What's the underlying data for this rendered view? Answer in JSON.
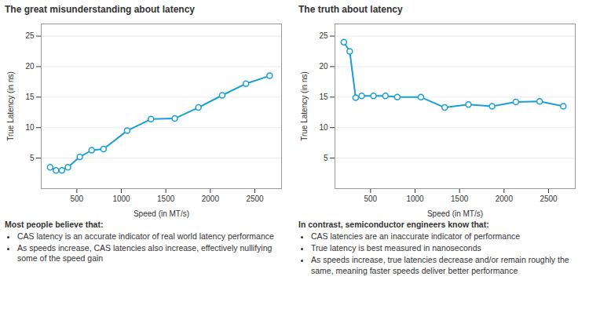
{
  "chart_data": [
    {
      "type": "line",
      "title": "The great misunderstanding about latency",
      "xlabel": "Speed (in MT/s)",
      "ylabel": "True Latency (in ns)",
      "x": [
        200,
        266,
        333,
        400,
        533,
        667,
        800,
        1066,
        1333,
        1600,
        1866,
        2133,
        2400,
        2666
      ],
      "values": [
        3.5,
        3.0,
        3.0,
        3.5,
        5.2,
        6.3,
        6.5,
        9.5,
        11.4,
        11.5,
        13.3,
        15.3,
        17.2,
        18.5
      ],
      "color": "#1A9FD4",
      "marker": "o",
      "xlim": [
        100,
        2800
      ],
      "xticks": [
        500,
        1000,
        1500,
        2000,
        2500
      ],
      "ylim": [
        0,
        27
      ],
      "yticks": [
        5,
        10,
        15,
        20,
        25
      ],
      "grid": true,
      "annotations": [
        "Most people believe that:",
        "CAS latency is an accurate indicator of real world latency performance",
        "As speeds increase, CAS latencies also increase, effectively nullifying some of the speed gain"
      ]
    },
    {
      "type": "line",
      "title": "The truth about latency",
      "xlabel": "Speed (in MT/s)",
      "ylabel": "True Latency (in ns)",
      "x": [
        200,
        266,
        333,
        400,
        533,
        667,
        800,
        1066,
        1333,
        1600,
        1866,
        2133,
        2400,
        2666
      ],
      "values": [
        24.0,
        22.5,
        14.9,
        15.2,
        15.2,
        15.2,
        15.0,
        15.0,
        13.3,
        13.8,
        13.5,
        14.2,
        14.3,
        13.5
      ],
      "color": "#1A9FD4",
      "marker": "o",
      "xlim": [
        100,
        2800
      ],
      "xticks": [
        500,
        1000,
        1500,
        2000,
        2500
      ],
      "ylim": [
        0,
        27
      ],
      "yticks": [
        5,
        10,
        15,
        20,
        25
      ],
      "grid": true,
      "annotations": [
        "In contrast, semiconductor engineers know that:",
        "CAS latencies are an inaccurate indicator of performance",
        "True latency is best measured in nanoseconds",
        "As speeds increase, true latencies decrease and/or remain roughly the same, meaning faster speeds deliver better performance"
      ]
    }
  ]
}
